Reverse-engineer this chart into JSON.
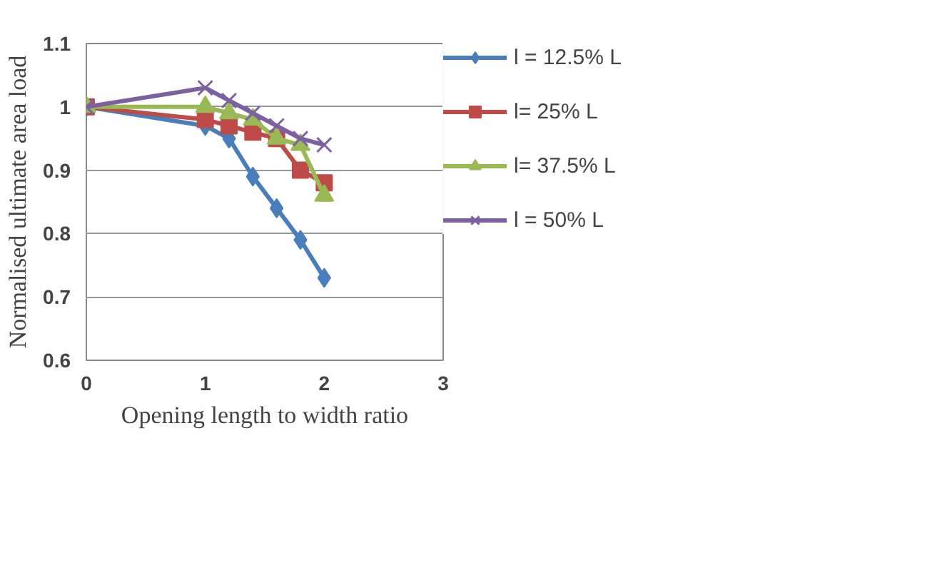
{
  "chart_data": {
    "type": "line",
    "xlabel": "Opening length to width ratio",
    "ylabel": "Normalised ultimate area load",
    "x": [
      0,
      1,
      1.2,
      1.4,
      1.6,
      1.8,
      2
    ],
    "series": [
      {
        "name": "l = 12.5% L",
        "color": "#4a7ebb",
        "marker": "diamond",
        "values": [
          1,
          0.97,
          0.95,
          0.89,
          0.84,
          0.79,
          0.73
        ]
      },
      {
        "name": "l= 25% L",
        "color": "#be4b48",
        "marker": "square",
        "values": [
          1,
          0.98,
          0.97,
          0.96,
          0.95,
          0.9,
          0.88
        ]
      },
      {
        "name": "l= 37.5% L",
        "color": "#98b954",
        "marker": "triangle",
        "values": [
          1,
          1.0,
          0.99,
          0.98,
          0.95,
          0.94,
          0.86
        ]
      },
      {
        "name": "l = 50% L",
        "color": "#7d60a0",
        "marker": "cross",
        "values": [
          1,
          1.03,
          1.01,
          0.99,
          0.97,
          0.95,
          0.94
        ]
      }
    ],
    "xlim": [
      0,
      3
    ],
    "xticks": [
      0,
      1,
      2,
      3
    ],
    "ylim": [
      0.6,
      1.1
    ],
    "yticks": [
      0.6,
      0.7,
      0.8,
      0.9,
      1,
      1.1
    ],
    "grid": "y",
    "legend": "right"
  }
}
